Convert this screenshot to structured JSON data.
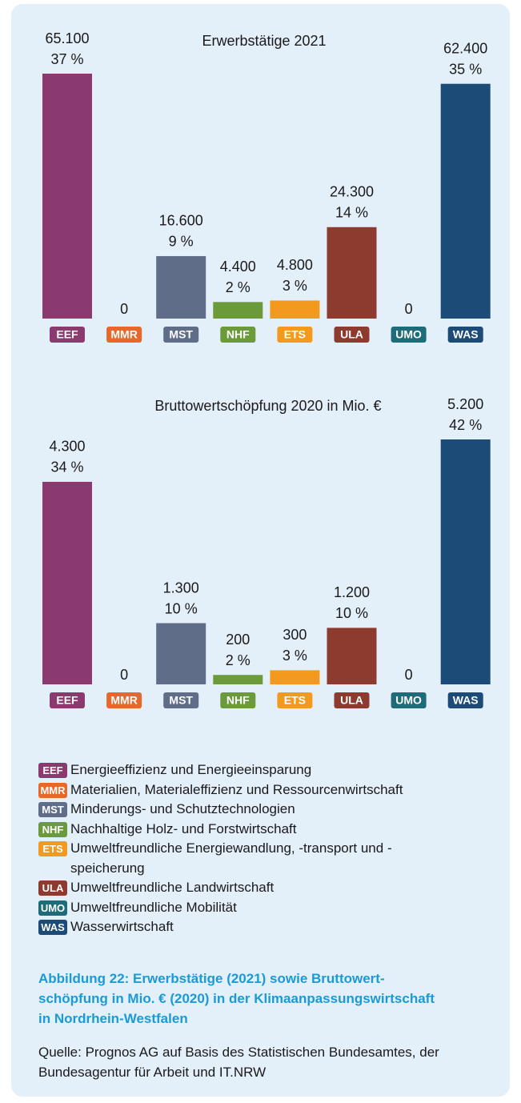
{
  "chart_data": [
    {
      "type": "bar",
      "title": "Erwerbstätige 2021",
      "categories": [
        "EEF",
        "MMR",
        "MST",
        "NHF",
        "ETS",
        "ULA",
        "UMO",
        "WAS"
      ],
      "values": [
        65100,
        0,
        16600,
        4400,
        4800,
        24300,
        0,
        62400
      ],
      "value_labels": [
        "65.100",
        "0",
        "16.600",
        "4.400",
        "4.800",
        "24.300",
        "0",
        "62.400"
      ],
      "share_labels": [
        "37 %",
        null,
        "9 %",
        "2 %",
        "3 %",
        "14 %",
        null,
        "35 %"
      ],
      "colors": [
        "#8a3a6f",
        "#e8672a",
        "#5f6d89",
        "#6a9a3a",
        "#f39a1e",
        "#8e3b2f",
        "#1e6c79",
        "#1b4b76"
      ]
    },
    {
      "type": "bar",
      "title": "Bruttowertschöpfung 2020 in Mio. €",
      "categories": [
        "EEF",
        "MMR",
        "MST",
        "NHF",
        "ETS",
        "ULA",
        "UMO",
        "WAS"
      ],
      "values": [
        4300,
        0,
        1300,
        200,
        300,
        1200,
        0,
        5200
      ],
      "value_labels": [
        "4.300",
        "0",
        "1.300",
        "200",
        "300",
        "1.200",
        "0",
        "5.200"
      ],
      "share_labels": [
        "34 %",
        null,
        "10 %",
        "2 %",
        "3 %",
        "10 %",
        null,
        "42 %"
      ],
      "colors": [
        "#8a3a6f",
        "#e8672a",
        "#5f6d89",
        "#6a9a3a",
        "#f39a1e",
        "#8e3b2f",
        "#1e6c79",
        "#1b4b76"
      ]
    }
  ],
  "legend": [
    {
      "code": "EEF",
      "color": "#8a3a6f",
      "label": "Energieeffizienz und Energieeinsparung"
    },
    {
      "code": "MMR",
      "color": "#e8672a",
      "label": "Materialien, Materialeffizienz und Ressourcenwirtschaft"
    },
    {
      "code": "MST",
      "color": "#5f6d89",
      "label": "Minderungs- und Schutztechnologien"
    },
    {
      "code": "NHF",
      "color": "#6a9a3a",
      "label": "Nachhaltige Holz- und Forstwirtschaft"
    },
    {
      "code": "ETS",
      "color": "#f39a1e",
      "label": "Umweltfreundliche Energiewandlung, -transport und -speicherung"
    },
    {
      "code": "ULA",
      "color": "#8e3b2f",
      "label": "Umweltfreundliche Landwirtschaft"
    },
    {
      "code": "UMO",
      "color": "#1e6c79",
      "label": "Umweltfreundliche Mobilität"
    },
    {
      "code": "WAS",
      "color": "#1b4b76",
      "label": "Wasserwirtschaft"
    }
  ],
  "caption": [
    "Abbildung 22: Erwerbstätige (2021) sowie Bruttowert-",
    "schöpfung in Mio. € (2020) in der Klimaanpassungswirtschaft",
    "in Nordrhein-Westfalen"
  ],
  "source": "Quelle: Prognos AG auf Basis des Statistischen Bundesamtes, der Bundesagentur für Arbeit und IT.NRW"
}
